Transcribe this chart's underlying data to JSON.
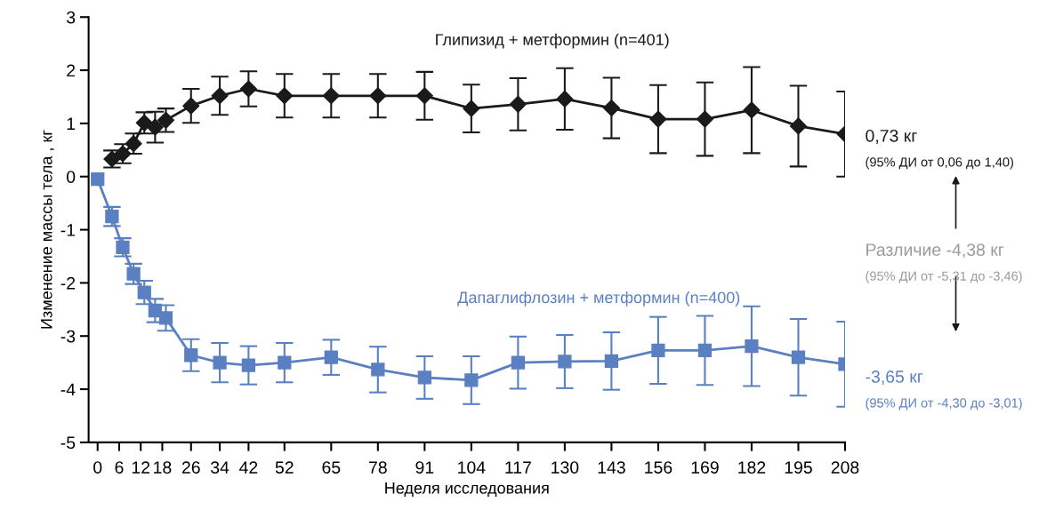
{
  "chart_data": {
    "type": "line",
    "xlabel": "Неделя исследования",
    "ylabel": "Изменение массы тела , кг",
    "x": [
      0,
      4,
      7,
      10,
      13,
      16,
      19,
      26,
      34,
      42,
      52,
      65,
      78,
      91,
      104,
      117,
      130,
      143,
      156,
      169,
      182,
      195,
      208
    ],
    "xlim": [
      -2.5,
      208
    ],
    "xticks": [
      0,
      6,
      12,
      18,
      26,
      34,
      42,
      52,
      65,
      78,
      91,
      104,
      117,
      130,
      143,
      156,
      169,
      182,
      195,
      208
    ],
    "ylim": [
      -5,
      3
    ],
    "yticks": [
      -5,
      -4,
      -3,
      -2,
      -1,
      0,
      1,
      2,
      3
    ],
    "grid": false,
    "legend": false,
    "series": [
      {
        "name": "Глипизид + метформин (n=401)",
        "color": "#1a1a1a",
        "marker": "diamond",
        "values": [
          null,
          0.33,
          0.43,
          0.62,
          1.01,
          0.93,
          1.06,
          1.33,
          1.52,
          1.65,
          1.52,
          1.52,
          1.52,
          1.52,
          1.28,
          1.36,
          1.46,
          1.29,
          1.08,
          1.08,
          1.25,
          0.95,
          0.8
        ],
        "errors": [
          null,
          0.16,
          0.18,
          0.19,
          0.2,
          0.29,
          0.22,
          0.32,
          0.36,
          0.33,
          0.41,
          0.41,
          0.41,
          0.45,
          0.45,
          0.49,
          0.58,
          0.57,
          0.64,
          0.69,
          0.81,
          0.76,
          0.8
        ]
      },
      {
        "name": "Дапаглифлозин + метформин (n=400)",
        "color": "#5b80c2",
        "marker": "square",
        "values": [
          -0.05,
          -0.75,
          -1.33,
          -1.83,
          -2.18,
          -2.52,
          -2.66,
          -3.36,
          -3.5,
          -3.55,
          -3.5,
          -3.4,
          -3.63,
          -3.78,
          -3.83,
          -3.5,
          -3.48,
          -3.47,
          -3.27,
          -3.27,
          -3.19,
          -3.4,
          -3.53
        ],
        "errors": [
          null,
          0.18,
          0.17,
          0.19,
          0.22,
          0.22,
          0.24,
          0.3,
          0.37,
          0.36,
          0.37,
          0.33,
          0.43,
          0.4,
          0.45,
          0.49,
          0.5,
          0.54,
          0.63,
          0.65,
          0.75,
          0.72,
          0.8
        ]
      }
    ],
    "annotations": [
      "0,73 кг",
      "(95% ДИ от 0,06 до 1,40)",
      "Различие -4,38 кг",
      "(95% ДИ от -5,31 до -3,46)",
      "-3,65 кг",
      "(95% ДИ от -4,30 до -3,01)"
    ]
  }
}
